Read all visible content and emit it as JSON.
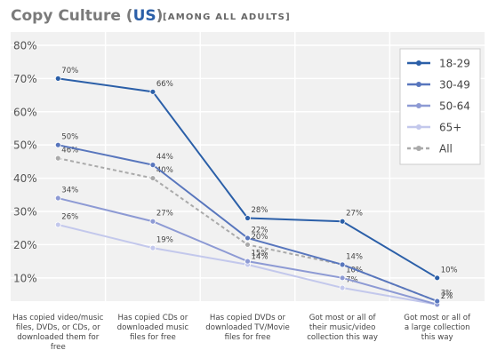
{
  "chart_data": {
    "type": "line",
    "title_parts": [
      "Copy Culture (",
      "US",
      ")"
    ],
    "subtitle": "[AMONG ALL ADULTS]",
    "categories": [
      "Has copied video/music\nfiles, DVDs, or CDs, or\ndownloaded them for free",
      "Has copied CDs or\ndownloaded music\nfiles for free",
      "Has copied DVDs or\ndownloaded TV/Movie\nfiles for free",
      "Got most or all of\ntheir music/video\ncollection this way",
      "Got most or all of\na large collection\nthis way"
    ],
    "series": [
      {
        "name": "18-29",
        "color": "#2b5fa8",
        "dashed": false,
        "values": [
          70,
          66,
          28,
          27,
          10
        ],
        "value_labels": [
          "70%",
          "66%",
          "28%",
          "27%",
          "10%"
        ]
      },
      {
        "name": "30-49",
        "color": "#5876bd",
        "dashed": false,
        "values": [
          50,
          44,
          22,
          14,
          3
        ],
        "value_labels": [
          "50%",
          "44%",
          "22%",
          "14%",
          "3%"
        ]
      },
      {
        "name": "50-64",
        "color": "#8d9ad4",
        "dashed": false,
        "values": [
          34,
          27,
          15,
          10,
          2
        ],
        "value_labels": [
          "34%",
          "27%",
          "15%",
          "10%",
          "2%"
        ]
      },
      {
        "name": "65+",
        "color": "#c3c8ec",
        "dashed": false,
        "values": [
          26,
          19,
          14,
          7,
          2
        ],
        "value_labels": [
          "26%",
          "19%",
          "14%",
          "7%",
          null
        ]
      },
      {
        "name": "All",
        "color": "#aaaaaa",
        "dashed": true,
        "values": [
          46,
          40,
          20,
          14,
          3
        ],
        "value_labels": [
          "46%",
          "40%",
          "20%",
          null,
          null
        ]
      }
    ],
    "ylim": [
      3,
      84
    ],
    "yticks": [
      {
        "value": 10,
        "label": "10%"
      },
      {
        "value": 20,
        "label": "20%"
      },
      {
        "value": 30,
        "label": "30%"
      },
      {
        "value": 40,
        "label": "40%"
      },
      {
        "value": 50,
        "label": "50%"
      },
      {
        "value": 60,
        "label": "60%"
      },
      {
        "value": 70,
        "label": "70%"
      },
      {
        "value": 80,
        "label": "80%"
      }
    ],
    "grid": true
  }
}
